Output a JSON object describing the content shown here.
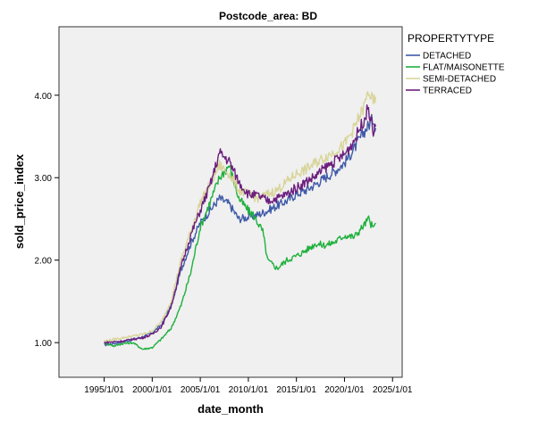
{
  "chart_data": {
    "type": "line",
    "title": "Postcode_area: BD",
    "xlabel": "date_month",
    "ylabel": "sold_price_index",
    "x_tick_labels": [
      "1995/1/01",
      "2000/1/01",
      "2005/1/01",
      "2010/1/01",
      "2015/1/01",
      "2020/1/01",
      "2025/1/01"
    ],
    "x_ticks": [
      1995,
      2000,
      2005,
      2010,
      2015,
      2020,
      2025
    ],
    "xlim": [
      1990.3,
      2026.0
    ],
    "y_tick_labels": [
      "1.00",
      "2.00",
      "3.00",
      "4.00"
    ],
    "y_ticks": [
      1.0,
      2.0,
      3.0,
      4.0
    ],
    "ylim": [
      0.58,
      4.83
    ],
    "legend_title": "PROPERTYTYPE",
    "series": [
      {
        "name": "DETACHED",
        "color": "#3f5aa8",
        "x": [
          1995.0,
          1996.0,
          1997.0,
          1998.0,
          1999.0,
          2000.0,
          2001.0,
          2002.0,
          2003.0,
          2004.0,
          2005.0,
          2006.0,
          2007.0,
          2008.0,
          2009.0,
          2010.0,
          2011.0,
          2012.0,
          2013.0,
          2014.0,
          2015.0,
          2016.0,
          2017.0,
          2018.0,
          2019.0,
          2020.0,
          2021.0,
          2022.0,
          2023.0,
          2023.25
        ],
        "y": [
          0.97,
          0.99,
          1.01,
          1.04,
          1.07,
          1.12,
          1.22,
          1.45,
          1.88,
          2.2,
          2.45,
          2.6,
          2.75,
          2.68,
          2.5,
          2.52,
          2.55,
          2.6,
          2.66,
          2.72,
          2.8,
          2.85,
          2.92,
          3.0,
          3.08,
          3.18,
          3.35,
          3.55,
          3.72,
          3.6
        ]
      },
      {
        "name": "FLAT/MAISONETTE",
        "color": "#1fb03d",
        "x": [
          1995.0,
          1996.0,
          1997.0,
          1998.0,
          1999.0,
          2000.0,
          2001.0,
          2002.0,
          2003.0,
          2004.0,
          2005.0,
          2006.0,
          2007.0,
          2008.0,
          2009.0,
          2010.0,
          2010.5,
          2011.0,
          2011.5,
          2012.0,
          2012.5,
          2013.0,
          2014.0,
          2015.0,
          2016.0,
          2017.0,
          2018.0,
          2019.0,
          2020.0,
          2021.0,
          2022.0,
          2022.5,
          2023.0,
          2023.25
        ],
        "y": [
          1.0,
          0.96,
          0.99,
          1.0,
          0.92,
          0.94,
          1.05,
          1.18,
          1.45,
          1.85,
          2.4,
          2.7,
          3.0,
          3.15,
          2.75,
          2.6,
          2.55,
          2.45,
          2.35,
          2.0,
          1.95,
          1.9,
          2.0,
          2.05,
          2.12,
          2.2,
          2.18,
          2.22,
          2.3,
          2.28,
          2.42,
          2.5,
          2.38,
          2.45
        ]
      },
      {
        "name": "SEMI-DETACHED",
        "color": "#d8d59a",
        "x": [
          1995.0,
          1996.0,
          1997.0,
          1998.0,
          1999.0,
          2000.0,
          2001.0,
          2002.0,
          2003.0,
          2004.0,
          2005.0,
          2006.0,
          2007.0,
          2008.0,
          2009.0,
          2010.0,
          2011.0,
          2012.0,
          2013.0,
          2014.0,
          2015.0,
          2016.0,
          2017.0,
          2018.0,
          2019.0,
          2020.0,
          2021.0,
          2022.0,
          2022.5,
          2023.0,
          2023.25
        ],
        "y": [
          1.02,
          1.04,
          1.06,
          1.08,
          1.1,
          1.14,
          1.26,
          1.52,
          2.0,
          2.35,
          2.7,
          2.92,
          3.15,
          3.05,
          2.85,
          2.8,
          2.75,
          2.8,
          2.85,
          2.95,
          3.05,
          3.1,
          3.18,
          3.25,
          3.32,
          3.4,
          3.6,
          3.85,
          4.05,
          3.9,
          3.98
        ]
      },
      {
        "name": "TERRACED",
        "color": "#6c1f7e",
        "x": [
          1995.0,
          1996.0,
          1997.0,
          1998.0,
          1999.0,
          2000.0,
          2001.0,
          2002.0,
          2003.0,
          2004.0,
          2005.0,
          2006.0,
          2007.0,
          2008.0,
          2009.0,
          2010.0,
          2011.0,
          2012.0,
          2013.0,
          2014.0,
          2015.0,
          2016.0,
          2017.0,
          2018.0,
          2019.0,
          2020.0,
          2021.0,
          2022.0,
          2022.5,
          2023.0,
          2023.25
        ],
        "y": [
          1.0,
          1.01,
          1.02,
          1.04,
          1.06,
          1.1,
          1.2,
          1.45,
          1.92,
          2.3,
          2.6,
          2.9,
          3.3,
          3.2,
          2.95,
          2.8,
          2.78,
          2.72,
          2.75,
          2.8,
          2.88,
          2.95,
          3.02,
          3.12,
          3.2,
          3.28,
          3.45,
          3.7,
          3.85,
          3.55,
          3.62
        ]
      }
    ],
    "grid": false,
    "legend_position": "top-right"
  }
}
